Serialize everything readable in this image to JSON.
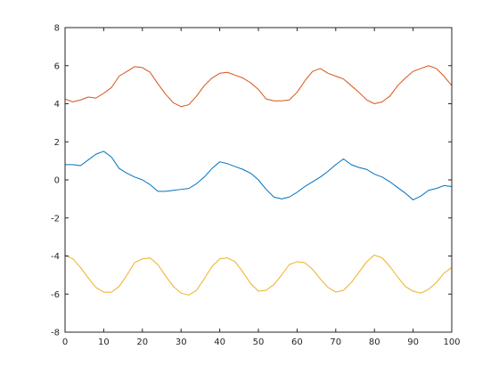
{
  "chart_data": {
    "type": "line",
    "title": "",
    "xlabel": "",
    "ylabel": "",
    "xlim": [
      0,
      100
    ],
    "ylim": [
      -8,
      8
    ],
    "xticks": [
      0,
      10,
      20,
      30,
      40,
      50,
      60,
      70,
      80,
      90,
      100
    ],
    "yticks": [
      -8,
      -6,
      -4,
      -2,
      0,
      2,
      4,
      6,
      8
    ],
    "xtick_labels": [
      "0",
      "10",
      "20",
      "30",
      "40",
      "50",
      "60",
      "70",
      "80",
      "90",
      "100"
    ],
    "ytick_labels": [
      "-8",
      "-6",
      "-4",
      "-2",
      "0",
      "2",
      "4",
      "6",
      "8"
    ],
    "grid": false,
    "box": true,
    "series": [
      {
        "color": "#0072BD",
        "x": [
          0,
          2,
          4,
          6,
          8,
          10,
          12,
          14,
          16,
          18,
          20,
          22,
          24,
          26,
          28,
          30,
          32,
          34,
          36,
          38,
          40,
          42,
          44,
          46,
          48,
          50,
          52,
          54,
          56,
          58,
          60,
          62,
          64,
          66,
          68,
          70,
          72,
          74,
          76,
          78,
          80,
          82,
          84,
          86,
          88,
          90,
          92,
          94,
          96,
          98,
          100
        ],
        "values": [
          0.8,
          0.8,
          0.75,
          1.05,
          1.35,
          1.5,
          1.2,
          0.6,
          0.35,
          0.15,
          0.0,
          -0.25,
          -0.6,
          -0.6,
          -0.55,
          -0.5,
          -0.45,
          -0.2,
          0.15,
          0.6,
          0.95,
          0.85,
          0.7,
          0.55,
          0.35,
          0.0,
          -0.5,
          -0.9,
          -1.0,
          -0.9,
          -0.65,
          -0.35,
          -0.1,
          0.15,
          0.45,
          0.8,
          1.1,
          0.8,
          0.65,
          0.55,
          0.3,
          0.15,
          -0.1,
          -0.4,
          -0.7,
          -1.05,
          -0.85,
          -0.55,
          -0.45,
          -0.3,
          -0.35
        ]
      },
      {
        "color": "#D95319",
        "x": [
          0,
          2,
          4,
          6,
          8,
          10,
          12,
          14,
          16,
          18,
          20,
          22,
          24,
          26,
          28,
          30,
          32,
          34,
          36,
          38,
          40,
          42,
          44,
          46,
          48,
          50,
          52,
          54,
          56,
          58,
          60,
          62,
          64,
          66,
          68,
          70,
          72,
          74,
          76,
          78,
          80,
          82,
          84,
          86,
          88,
          90,
          92,
          94,
          96,
          98,
          100
        ],
        "values": [
          4.25,
          4.1,
          4.2,
          4.35,
          4.3,
          4.55,
          4.85,
          5.45,
          5.7,
          5.95,
          5.9,
          5.65,
          5.05,
          4.5,
          4.05,
          3.85,
          3.95,
          4.4,
          4.95,
          5.35,
          5.6,
          5.65,
          5.5,
          5.35,
          5.1,
          4.75,
          4.25,
          4.15,
          4.15,
          4.2,
          4.6,
          5.2,
          5.7,
          5.85,
          5.6,
          5.45,
          5.3,
          4.95,
          4.6,
          4.2,
          4.0,
          4.1,
          4.4,
          4.95,
          5.35,
          5.7,
          5.85,
          6.0,
          5.85,
          5.45,
          4.95
        ]
      },
      {
        "color": "#EDB120",
        "x": [
          0,
          2,
          4,
          6,
          8,
          10,
          12,
          14,
          16,
          18,
          20,
          22,
          24,
          26,
          28,
          30,
          32,
          34,
          36,
          38,
          40,
          42,
          44,
          46,
          48,
          50,
          52,
          54,
          56,
          58,
          60,
          62,
          64,
          66,
          68,
          70,
          72,
          74,
          76,
          78,
          80,
          82,
          84,
          86,
          88,
          90,
          92,
          94,
          96,
          98,
          100
        ],
        "values": [
          -3.95,
          -4.15,
          -4.6,
          -5.15,
          -5.65,
          -5.9,
          -5.9,
          -5.6,
          -5.0,
          -4.35,
          -4.15,
          -4.1,
          -4.45,
          -5.05,
          -5.6,
          -5.95,
          -6.05,
          -5.8,
          -5.2,
          -4.55,
          -4.15,
          -4.1,
          -4.3,
          -4.85,
          -5.45,
          -5.85,
          -5.8,
          -5.5,
          -5.0,
          -4.45,
          -4.3,
          -4.35,
          -4.7,
          -5.2,
          -5.65,
          -5.9,
          -5.8,
          -5.4,
          -4.85,
          -4.3,
          -3.95,
          -4.1,
          -4.55,
          -5.1,
          -5.6,
          -5.85,
          -5.95,
          -5.75,
          -5.4,
          -4.9,
          -4.6
        ]
      }
    ]
  }
}
